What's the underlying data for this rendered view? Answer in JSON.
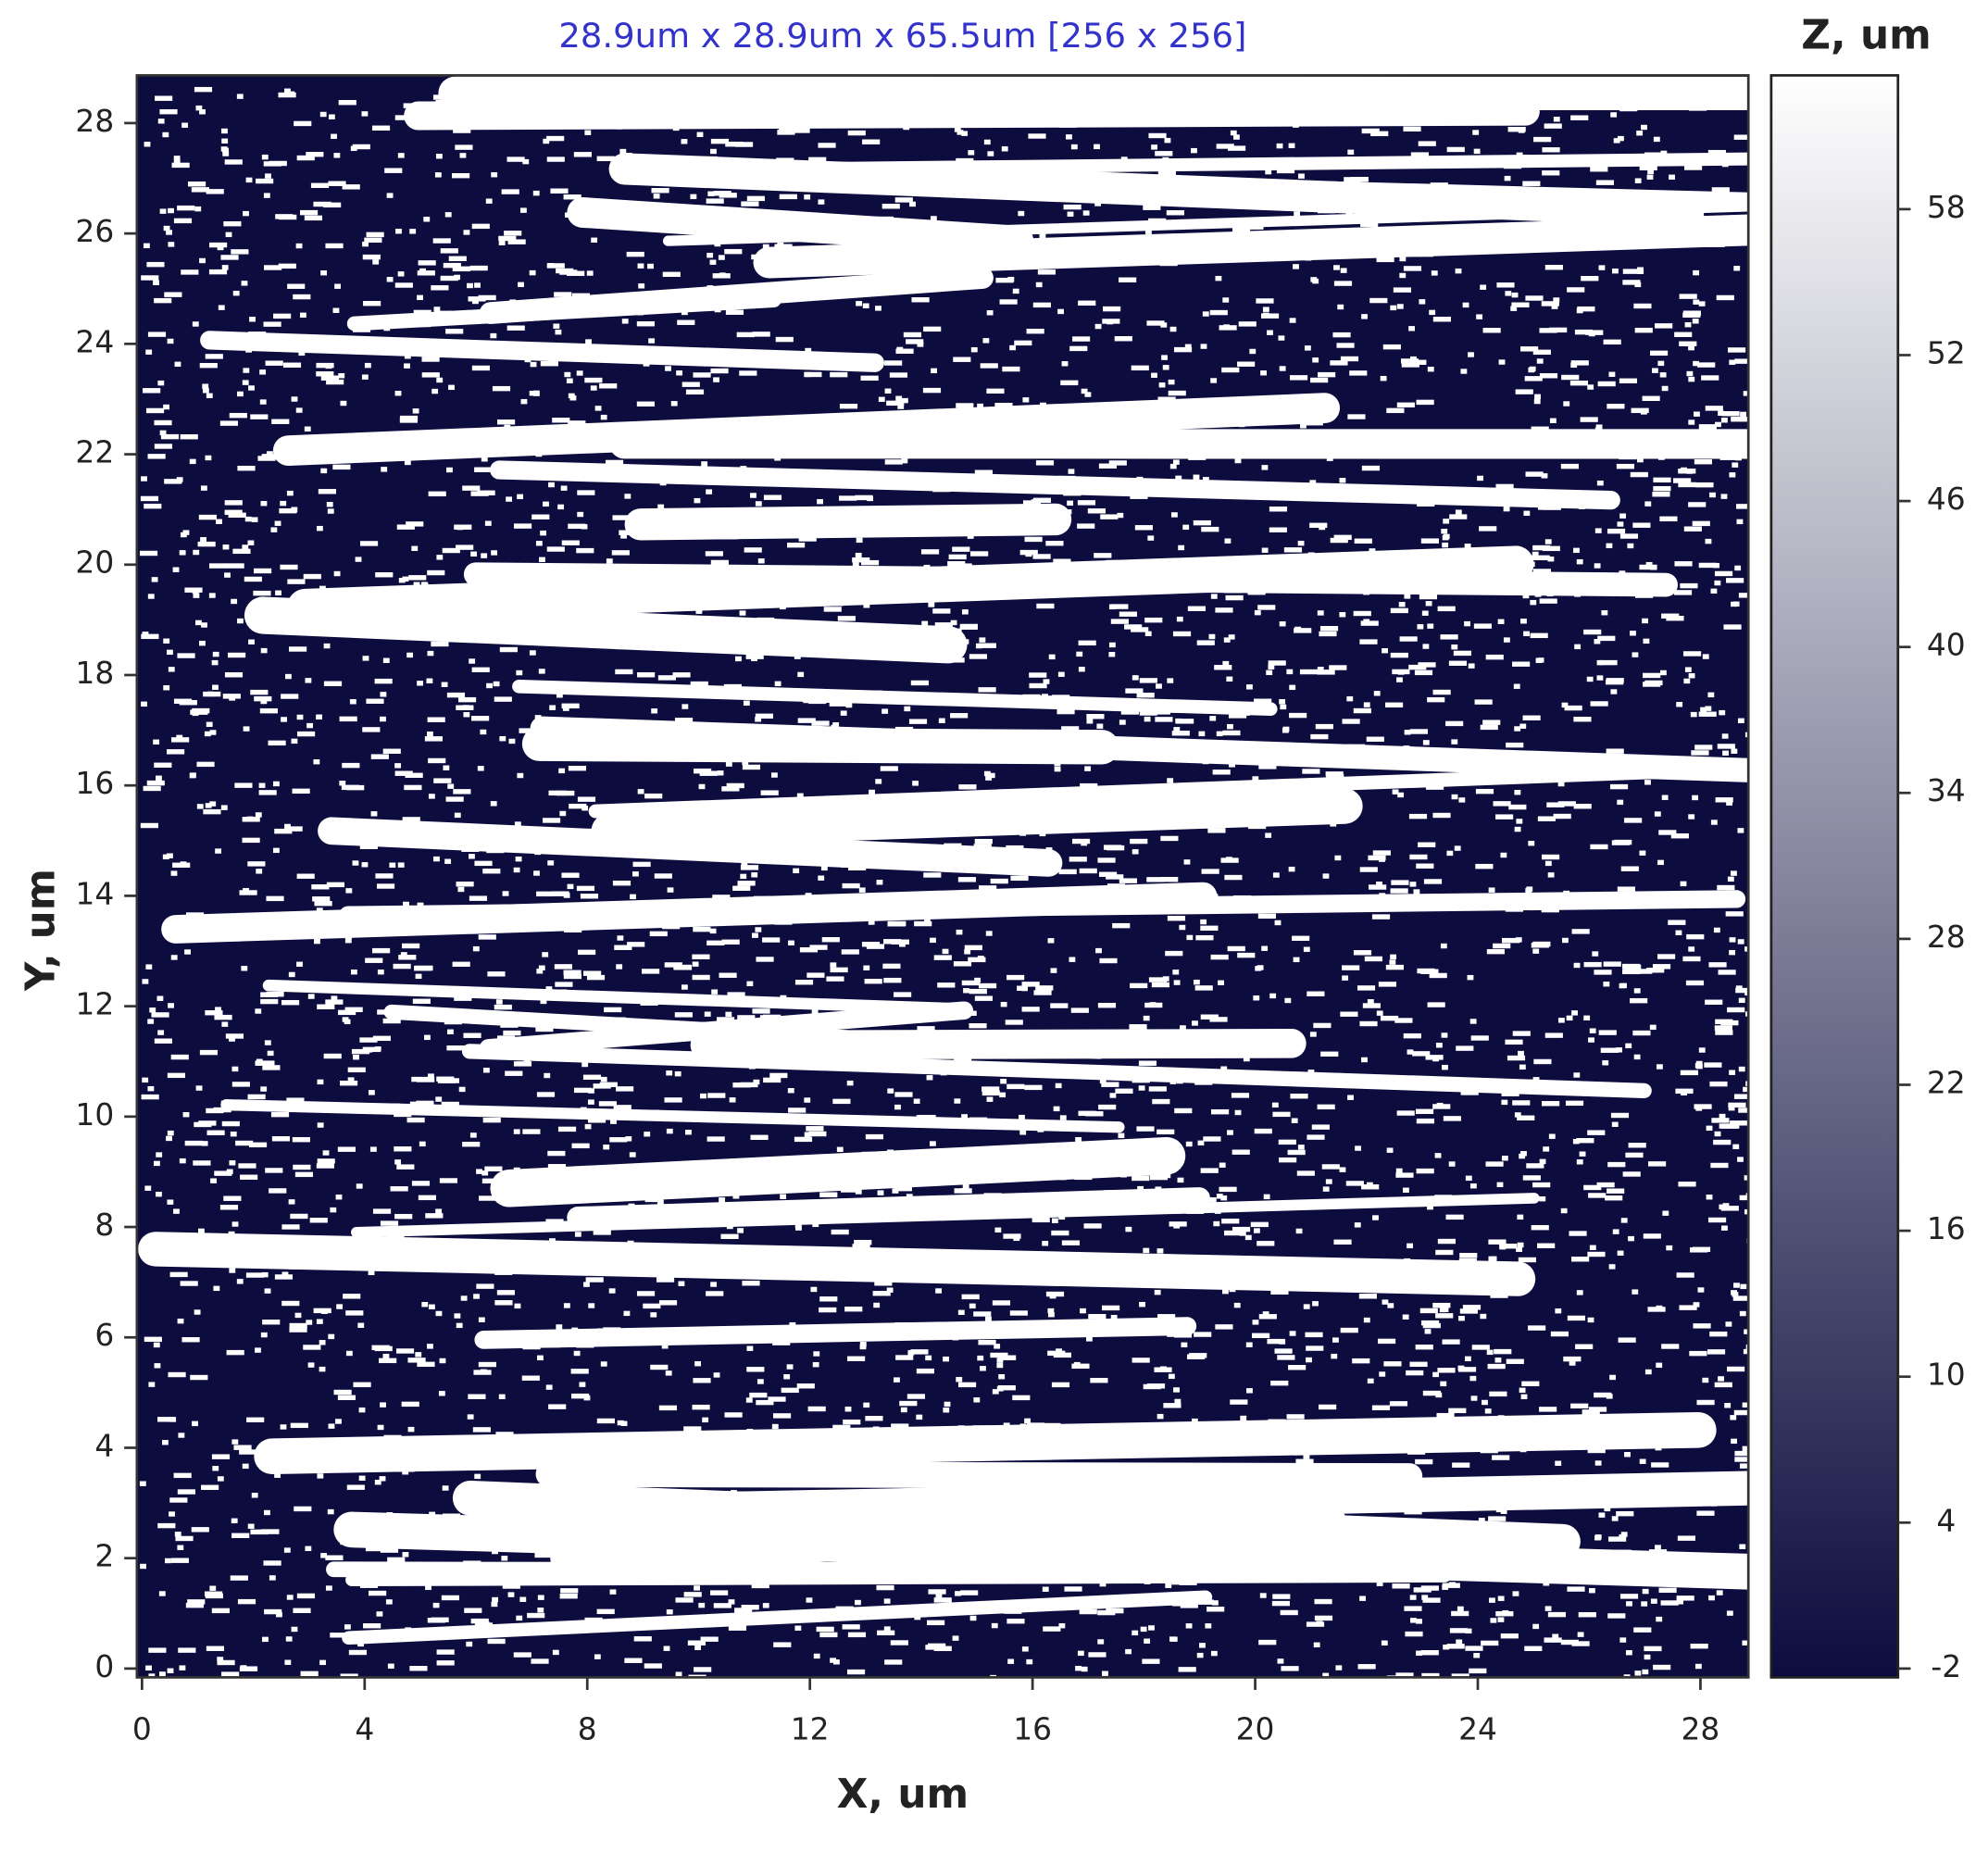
{
  "chart_data": {
    "type": "heatmap",
    "title": "28.9um x 28.9um x 65.5um [256 x 256]",
    "x_label": "X, um",
    "y_label": "Y, um",
    "colorbar_label": "Z, um",
    "xlim": [
      0,
      28.9
    ],
    "ylim": [
      0,
      28.9
    ],
    "xticks": [
      0,
      4,
      8,
      12,
      16,
      20,
      24,
      28
    ],
    "yticks": [
      0,
      2,
      4,
      6,
      8,
      10,
      12,
      14,
      16,
      18,
      20,
      22,
      24,
      26,
      28
    ],
    "zlim": [
      -2,
      63.5
    ],
    "zticks": [
      -2,
      4,
      10,
      16,
      22,
      28,
      34,
      40,
      46,
      52,
      58
    ],
    "colormap": [
      "#0c0c3e",
      "#ffffff"
    ]
  }
}
